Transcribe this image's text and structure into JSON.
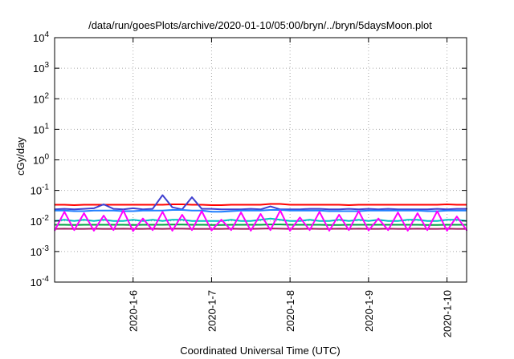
{
  "chart_data": {
    "type": "line",
    "title": "/data/run/goesPlots/archive/2020-01-10/05:00/bryn/../bryn/5daysMoon.plot",
    "xlabel": "Coordinated Universal Time (UTC)",
    "ylabel": "cGy/day",
    "y_scale": "log",
    "ylim": [
      0.0001,
      10000
    ],
    "xlim": [
      "2020-01-05 00:00",
      "2020-01-10 06:00"
    ],
    "x_ticks": [
      "2020-1-6",
      "2020-1-7",
      "2020-1-8",
      "2020-1-9",
      "2020-1-10"
    ],
    "y_ticks": [
      {
        "base": "10",
        "exp": "-4",
        "value": 0.0001
      },
      {
        "base": "10",
        "exp": "-3",
        "value": 0.001
      },
      {
        "base": "10",
        "exp": "-2",
        "value": 0.01
      },
      {
        "base": "10",
        "exp": "-1",
        "value": 0.1
      },
      {
        "base": "10",
        "exp": "0",
        "value": 1
      },
      {
        "base": "10",
        "exp": "1",
        "value": 10
      },
      {
        "base": "10",
        "exp": "2",
        "value": 100
      },
      {
        "base": "10",
        "exp": "3",
        "value": 1000
      },
      {
        "base": "10",
        "exp": "4",
        "value": 10000
      }
    ],
    "grid": true,
    "x_step_hours": 3,
    "series": [
      {
        "color": "#ff0000",
        "values": [
          0.034,
          0.034,
          0.033,
          0.034,
          0.034,
          0.034,
          0.034,
          0.034,
          0.034,
          0.034,
          0.034,
          0.034,
          0.035,
          0.035,
          0.034,
          0.034,
          0.033,
          0.033,
          0.034,
          0.034,
          0.034,
          0.034,
          0.036,
          0.036,
          0.034,
          0.034,
          0.034,
          0.034,
          0.034,
          0.034,
          0.033,
          0.034,
          0.034,
          0.034,
          0.034,
          0.034,
          0.034,
          0.034,
          0.034,
          0.034,
          0.035,
          0.034,
          0.034,
          0.034
        ]
      },
      {
        "color": "#3f3fcf",
        "values": [
          0.024,
          0.025,
          0.024,
          0.025,
          0.026,
          0.035,
          0.025,
          0.024,
          0.026,
          0.024,
          0.025,
          0.07,
          0.028,
          0.024,
          0.06,
          0.025,
          0.025,
          0.024,
          0.024,
          0.024,
          0.025,
          0.024,
          0.03,
          0.024,
          0.024,
          0.024,
          0.025,
          0.025,
          0.024,
          0.024,
          0.025,
          0.024,
          0.025,
          0.024,
          0.025,
          0.024,
          0.024,
          0.024,
          0.024,
          0.025,
          0.024,
          0.025,
          0.025,
          0.024
        ]
      },
      {
        "color": "#1f7fff",
        "values": [
          0.022,
          0.022,
          0.021,
          0.021,
          0.022,
          0.022,
          0.022,
          0.021,
          0.021,
          0.022,
          0.022,
          0.022,
          0.023,
          0.023,
          0.022,
          0.022,
          0.02,
          0.02,
          0.021,
          0.022,
          0.022,
          0.022,
          0.023,
          0.023,
          0.022,
          0.022,
          0.022,
          0.022,
          0.021,
          0.021,
          0.021,
          0.021,
          0.022,
          0.022,
          0.022,
          0.022,
          0.022,
          0.022,
          0.021,
          0.021,
          0.022,
          0.022,
          0.022,
          0.022
        ]
      },
      {
        "color": "#00bfbf",
        "values": [
          0.01,
          0.011,
          0.01,
          0.011,
          0.01,
          0.011,
          0.01,
          0.01,
          0.011,
          0.01,
          0.011,
          0.01,
          0.011,
          0.011,
          0.01,
          0.01,
          0.01,
          0.01,
          0.011,
          0.01,
          0.01,
          0.011,
          0.012,
          0.011,
          0.01,
          0.01,
          0.011,
          0.01,
          0.01,
          0.011,
          0.01,
          0.011,
          0.01,
          0.011,
          0.01,
          0.01,
          0.011,
          0.011,
          0.01,
          0.01,
          0.011,
          0.011,
          0.01,
          0.01
        ]
      },
      {
        "color": "#009f3f",
        "values": [
          0.0075,
          0.0075,
          0.0074,
          0.0075,
          0.0075,
          0.0075,
          0.0075,
          0.0075,
          0.0074,
          0.0075,
          0.0075,
          0.0075,
          0.0076,
          0.0076,
          0.0075,
          0.0075,
          0.0074,
          0.0074,
          0.0075,
          0.0075,
          0.0075,
          0.0075,
          0.0077,
          0.0077,
          0.0075,
          0.0075,
          0.0075,
          0.0075,
          0.0074,
          0.0074,
          0.0075,
          0.0075,
          0.0075,
          0.0075,
          0.0075,
          0.0075,
          0.0075,
          0.0075,
          0.0074,
          0.0074,
          0.0075,
          0.0075,
          0.0075,
          0.0075
        ]
      },
      {
        "color": "#9f1f5f",
        "values": [
          0.0055,
          0.0056,
          0.0055,
          0.0055,
          0.0056,
          0.0055,
          0.0055,
          0.0056,
          0.0055,
          0.0055,
          0.0056,
          0.0055,
          0.0056,
          0.0056,
          0.0055,
          0.0055,
          0.0055,
          0.0055,
          0.0056,
          0.0055,
          0.0055,
          0.0056,
          0.0057,
          0.0056,
          0.0055,
          0.0055,
          0.0056,
          0.0055,
          0.0055,
          0.0056,
          0.0055,
          0.0056,
          0.0055,
          0.0055,
          0.0056,
          0.0055,
          0.0055,
          0.0056,
          0.0055,
          0.0055,
          0.0056,
          0.0055,
          0.0055,
          0.0055
        ]
      },
      {
        "color": "#ff00ff",
        "values": [
          0.0048,
          0.02,
          0.005,
          0.018,
          0.0048,
          0.015,
          0.005,
          0.022,
          0.0047,
          0.012,
          0.005,
          0.02,
          0.0048,
          0.016,
          0.005,
          0.021,
          0.0049,
          0.011,
          0.005,
          0.019,
          0.0048,
          0.017,
          0.005,
          0.022,
          0.0048,
          0.013,
          0.005,
          0.02,
          0.0048,
          0.016,
          0.005,
          0.021,
          0.0049,
          0.012,
          0.005,
          0.019,
          0.0048,
          0.018,
          0.005,
          0.021,
          0.0048,
          0.014,
          0.005,
          0.0048
        ]
      }
    ]
  }
}
